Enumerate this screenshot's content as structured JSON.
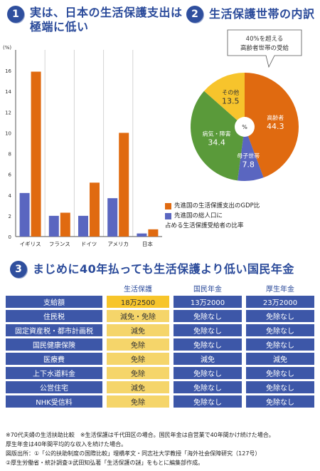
{
  "section1": {
    "number": "1",
    "title_line1": "実は、日本の生活保護支出は",
    "title_line2": "極端に低い"
  },
  "section2": {
    "number": "2",
    "title": "生活保護世帯の内訳"
  },
  "section3": {
    "number": "3",
    "title": "まじめに40年払っても生活保護より低い国民年金"
  },
  "colors": {
    "orange": "#e06a10",
    "blue": "#5a66c0",
    "green": "#5a9a3a",
    "yellow": "#f7c42c",
    "navy": "#3d57a8",
    "header": "#2a4a9a"
  },
  "chart_data": [
    {
      "type": "bar",
      "ylabel_unit": "(%)",
      "ylim": [
        0,
        18
      ],
      "yticks": [
        "0",
        "2",
        "4",
        "6",
        "8",
        "10",
        "12",
        "14",
        "16",
        "18"
      ],
      "grid": "vertical",
      "categories": [
        "イギリス",
        "フランス",
        "ドイツ",
        "アメリカ",
        "日本"
      ],
      "series": [
        {
          "name": "先進国の生活保護支出のGDP比",
          "color": "#e06a10",
          "values": [
            15.9,
            2.3,
            5.2,
            10.0,
            0.7
          ]
        },
        {
          "name": "先進国の総人口に占める生活保護受給者の比率",
          "color": "#5a66c0",
          "values": [
            4.2,
            2.0,
            2.0,
            3.7,
            0.3
          ]
        }
      ],
      "legend_line1": "先進国の生活保護支出のGDP比",
      "legend_line2": "先進国の総人口に",
      "legend_line3": "占める生活保護受給者の比率",
      "legend_placement": "bottom-right"
    },
    {
      "type": "pie",
      "center_label": "%",
      "callout_line1": "40%を超える",
      "callout_line2": "高齢者世帯の受給",
      "slices": [
        {
          "label": "高齢者",
          "value": "44.3",
          "color": "#e06a10"
        },
        {
          "label": "母子世帯",
          "value": "7.8",
          "color": "#5a66c0"
        },
        {
          "label": "病気・障害",
          "value": "34.4",
          "color": "#5a9a3a"
        },
        {
          "label": "その他",
          "value": "13.5",
          "color": "#f7c42c"
        }
      ]
    }
  ],
  "table": {
    "columns": [
      "生活保護",
      "国民年金",
      "厚生年金"
    ],
    "rows": [
      {
        "label": "支給額",
        "values": [
          "18万2500",
          "13万2000",
          "23万2000"
        ]
      },
      {
        "label": "住民税",
        "values": [
          "減免・免除",
          "免除なし",
          "免除なし"
        ]
      },
      {
        "label": "固定資産税・都市計画税",
        "values": [
          "減免",
          "免除なし",
          "免除なし"
        ]
      },
      {
        "label": "国民健康保険",
        "values": [
          "免除",
          "免除なし",
          "免除なし"
        ]
      },
      {
        "label": "医療費",
        "values": [
          "免除",
          "減免",
          "減免"
        ]
      },
      {
        "label": "上下水道料金",
        "values": [
          "免除",
          "免除なし",
          "免除なし"
        ]
      },
      {
        "label": "公営住宅",
        "values": [
          "減免",
          "免除なし",
          "免除なし"
        ]
      },
      {
        "label": "NHK受信料",
        "values": [
          "免除",
          "免除なし",
          "免除なし"
        ]
      }
    ]
  },
  "notes": {
    "line1": "※70代夫婦の生活扶助比較　※生活保護は千代田区の場合。国民年金は自営業で40年間かけ続けた場合。",
    "line2": "厚生年金は40年間平均的な収入を続けた場合。",
    "line3": "図版出所：①「公的扶助制度の国際比較」埋橋孝文・同志社大学教授「海外社会保障研究（127号）",
    "line4": "②厚生労働省・統計調査③武田知弘著「生活保護の謎」をもとに編集部作成。"
  }
}
